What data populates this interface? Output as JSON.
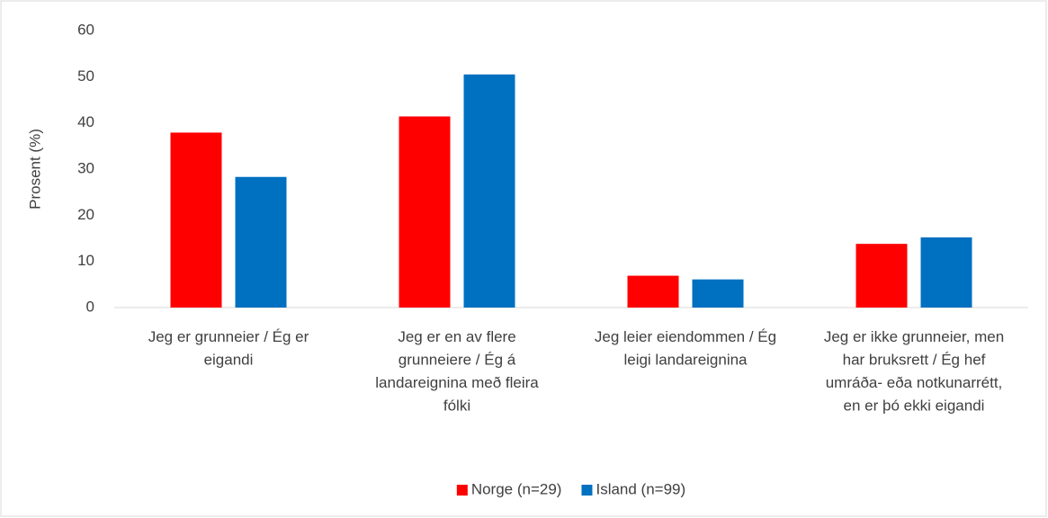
{
  "chart_data": {
    "type": "bar",
    "ylabel": "Prosent (%)",
    "categories": [
      "Jeg er grunneier / Ég er eigandi",
      "Jeg er en av flere grunneiere / Ég á landareignina með fleira fólki",
      "Jeg leier eiendommen / Ég leigi landareignina",
      "Jeg er ikke grunneier, men har bruksrett / Ég hef umráða- eða notkunarrétt, en er þó ekki eigandi"
    ],
    "series": [
      {
        "name": "Norge (n=29)",
        "color": "#ff0000",
        "values": [
          37.9,
          41.4,
          6.9,
          13.8
        ]
      },
      {
        "name": "Island (n=99)",
        "color": "#0070c0",
        "values": [
          28.3,
          50.5,
          6.1,
          15.2
        ]
      }
    ],
    "ylim": [
      0,
      60
    ],
    "yticks": [
      0,
      10,
      20,
      30,
      40,
      50,
      60
    ],
    "grid": false,
    "legend": "bottom"
  }
}
